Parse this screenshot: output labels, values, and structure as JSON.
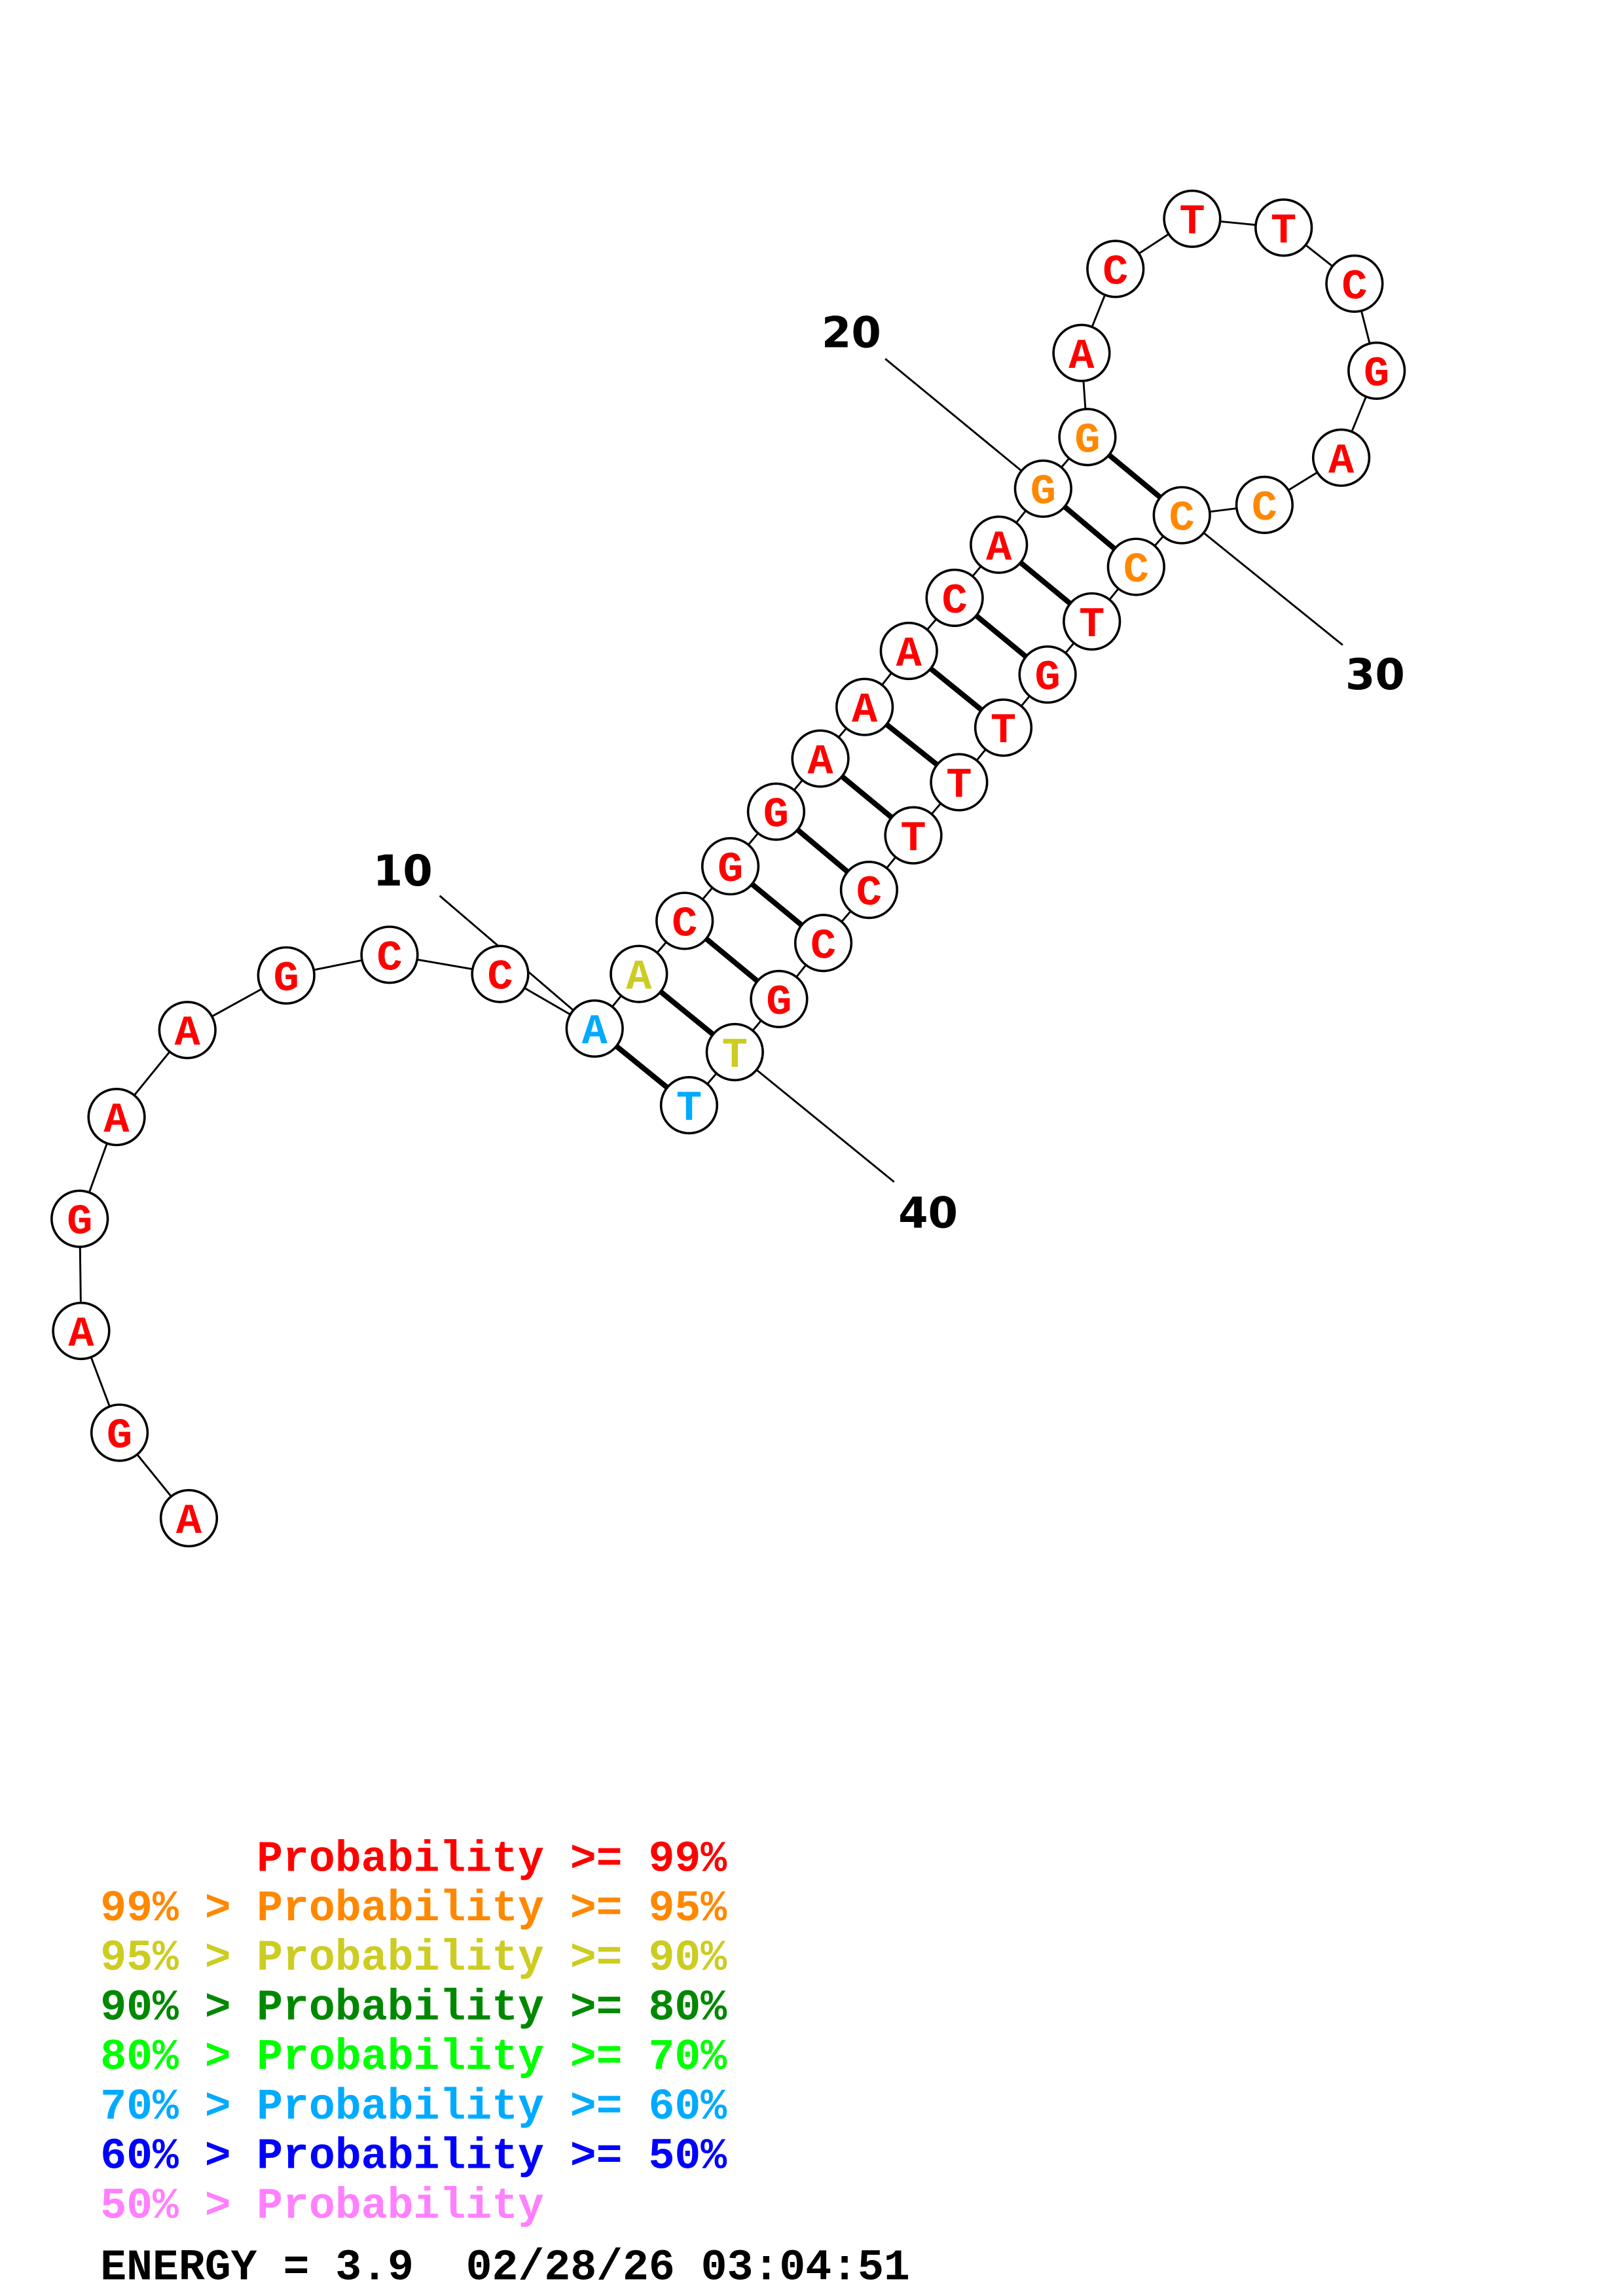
{
  "structure": {
    "sequence": "AGAGAAGCCAACGGAAACAGGACTTCGACCCTGTTTCCGTT",
    "nucleotide_colors": [
      "red",
      "red",
      "red",
      "red",
      "red",
      "red",
      "red",
      "red",
      "red",
      "cyan",
      "yellow",
      "red",
      "red",
      "red",
      "red",
      "red",
      "red",
      "red",
      "red",
      "orange",
      "orange",
      "red",
      "red",
      "red",
      "red",
      "red",
      "red",
      "red",
      "orange",
      "orange",
      "orange",
      "red",
      "red",
      "red",
      "red",
      "red",
      "red",
      "red",
      "red",
      "yellow",
      "cyan"
    ],
    "pairs": [
      [
        10,
        41
      ],
      [
        11,
        40
      ],
      [
        12,
        39
      ],
      [
        13,
        38
      ],
      [
        14,
        37
      ],
      [
        15,
        36
      ],
      [
        16,
        35
      ],
      [
        17,
        34
      ],
      [
        18,
        33
      ],
      [
        19,
        32
      ],
      [
        20,
        31
      ],
      [
        21,
        30
      ]
    ],
    "position_labels": [
      {
        "position": 10,
        "text": "10"
      },
      {
        "position": 20,
        "text": "20"
      },
      {
        "position": 30,
        "text": "30"
      },
      {
        "position": 40,
        "text": "40"
      }
    ]
  },
  "colors": {
    "red": "#FF0000",
    "orange": "#FF8800",
    "yellow": "#CCCC22",
    "darkgreen": "#008800",
    "green": "#00FF00",
    "cyan": "#00AAFF",
    "blue": "#0000FF",
    "pink": "#FF80FF"
  },
  "legend": [
    {
      "prefix": "",
      "text": "Probability >= 99%",
      "color": "red"
    },
    {
      "prefix": "99% > ",
      "text": "Probability >= 95%",
      "color": "orange"
    },
    {
      "prefix": "95% > ",
      "text": "Probability >= 90%",
      "color": "yellow"
    },
    {
      "prefix": "90% > ",
      "text": "Probability >= 80%",
      "color": "darkgreen"
    },
    {
      "prefix": "80% > ",
      "text": "Probability >= 70%",
      "color": "green"
    },
    {
      "prefix": "70% > ",
      "text": "Probability >= 60%",
      "color": "cyan"
    },
    {
      "prefix": "60% > ",
      "text": "Probability >= 50%",
      "color": "blue"
    },
    {
      "prefix": "50% > ",
      "text": "Probability",
      "color": "pink"
    }
  ],
  "footer": {
    "energy": "ENERGY = 3.9  02/28/26 03:04:51"
  }
}
